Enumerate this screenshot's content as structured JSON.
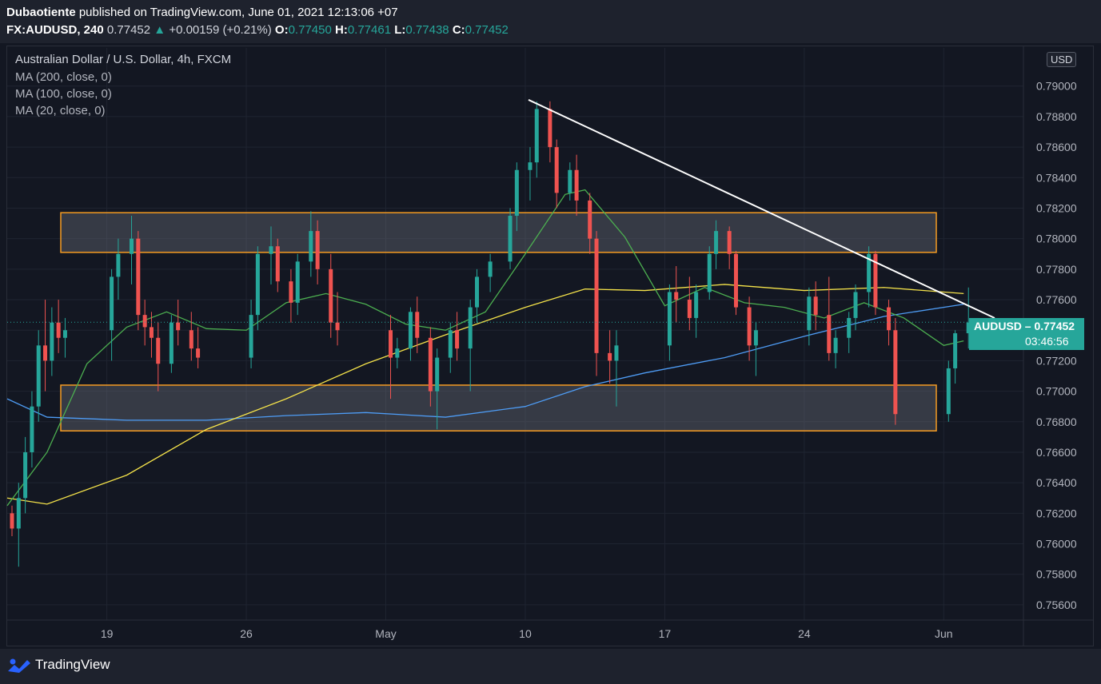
{
  "header": {
    "author": "Dubaotiente",
    "published_text": "published on TradingView.com, June 01, 2021 12:13:06 +07",
    "symbol": "FX:AUDUSD, 240",
    "last": "0.77452",
    "change": "+0.00159 (+0.21%)",
    "o_label": "O:",
    "o_value": "0.77450",
    "h_label": "H:",
    "h_value": "0.77461",
    "l_label": "L:",
    "l_value": "0.77438",
    "c_label": "C:",
    "c_value": "0.77452"
  },
  "legend": {
    "title": "Australian Dollar / U.S. Dollar, 4h, FXCM",
    "ma200": "MA (200, close, 0)",
    "ma100": "MA (100, close, 0)",
    "ma20": "MA (20, close, 0)"
  },
  "price_badge": {
    "symbol": "AUDUSD",
    "price": "0.77452",
    "countdown": "03:46:56"
  },
  "currency_badge": "USD",
  "footer": {
    "brand": "TradingView"
  },
  "colors": {
    "up": "#26a69a",
    "down": "#ef5350",
    "ma200": "#4e9cf5",
    "ma100": "#f5e34a",
    "ma20": "#4caf50",
    "zone_border": "#f59b22",
    "trendline": "#ffffff"
  },
  "chart_data": {
    "type": "candlestick",
    "title": "Australian Dollar / U.S. Dollar, 4h, FXCM",
    "y_axis_labels": [
      "0.79000",
      "0.78800",
      "0.78600",
      "0.78400",
      "0.78200",
      "0.78000",
      "0.77800",
      "0.77600",
      "0.77400",
      "0.77200",
      "0.77000",
      "0.76800",
      "0.76600",
      "0.76400",
      "0.76200",
      "0.76000",
      "0.75800",
      "0.75600"
    ],
    "y_ticks": [
      0.79,
      0.788,
      0.786,
      0.784,
      0.782,
      0.78,
      0.778,
      0.776,
      0.774,
      0.772,
      0.77,
      0.768,
      0.766,
      0.764,
      0.762,
      0.76,
      0.758,
      0.756
    ],
    "ylim": [
      0.755,
      0.7925
    ],
    "x_labels": [
      "19",
      "26",
      "May",
      "10",
      "17",
      "24",
      "Jun"
    ],
    "x_label_dates": [
      "2021-04-19",
      "2021-04-26",
      "2021-05-03",
      "2021-05-10",
      "2021-05-17",
      "2021-05-24",
      "2021-05-31"
    ],
    "date_range": [
      "2021-04-14",
      "2021-06-04"
    ],
    "last_price": 0.77452,
    "zones": [
      {
        "top": 0.7817,
        "bottom": 0.7791,
        "start": "2021-04-15",
        "end": "2021-05-31"
      },
      {
        "top": 0.7704,
        "bottom": 0.7674,
        "start": "2021-04-15",
        "end": "2021-05-31"
      }
    ],
    "trendline": [
      {
        "date": "2021-05-11",
        "price": 0.7891
      },
      {
        "date": "2021-06-02",
        "price": 0.7755
      }
    ],
    "ma200": [
      [
        "2021-04-14",
        0.7695
      ],
      [
        "2021-04-16",
        0.7683
      ],
      [
        "2021-04-20",
        0.7681
      ],
      [
        "2021-04-24",
        0.7681
      ],
      [
        "2021-04-28",
        0.7684
      ],
      [
        "2021-05-02",
        0.7686
      ],
      [
        "2021-05-06",
        0.7683
      ],
      [
        "2021-05-10",
        0.769
      ],
      [
        "2021-05-13",
        0.7703
      ],
      [
        "2021-05-16",
        0.7712
      ],
      [
        "2021-05-20",
        0.7722
      ],
      [
        "2021-05-24",
        0.7736
      ],
      [
        "2021-05-28",
        0.7749
      ],
      [
        "2021-06-01",
        0.7757
      ]
    ],
    "ma100": [
      [
        "2021-04-14",
        0.763
      ],
      [
        "2021-04-16",
        0.7626
      ],
      [
        "2021-04-20",
        0.7645
      ],
      [
        "2021-04-24",
        0.7675
      ],
      [
        "2021-04-28",
        0.7695
      ],
      [
        "2021-05-02",
        0.7718
      ],
      [
        "2021-05-06",
        0.7737
      ],
      [
        "2021-05-10",
        0.7755
      ],
      [
        "2021-05-13",
        0.7767
      ],
      [
        "2021-05-16",
        0.7766
      ],
      [
        "2021-05-20",
        0.777
      ],
      [
        "2021-05-24",
        0.7766
      ],
      [
        "2021-05-28",
        0.7768
      ],
      [
        "2021-06-01",
        0.7764
      ]
    ],
    "ma20": [
      [
        "2021-04-14",
        0.7625
      ],
      [
        "2021-04-16",
        0.766
      ],
      [
        "2021-04-18",
        0.7718
      ],
      [
        "2021-04-20",
        0.7742
      ],
      [
        "2021-04-22",
        0.7752
      ],
      [
        "2021-04-24",
        0.7741
      ],
      [
        "2021-04-26",
        0.774
      ],
      [
        "2021-04-28",
        0.7758
      ],
      [
        "2021-04-30",
        0.7764
      ],
      [
        "2021-05-02",
        0.7757
      ],
      [
        "2021-05-04",
        0.7744
      ],
      [
        "2021-05-06",
        0.774
      ],
      [
        "2021-05-08",
        0.7752
      ],
      [
        "2021-05-10",
        0.779
      ],
      [
        "2021-05-12",
        0.7829
      ],
      [
        "2021-05-13",
        0.7832
      ],
      [
        "2021-05-15",
        0.7801
      ],
      [
        "2021-05-17",
        0.7756
      ],
      [
        "2021-05-19",
        0.7768
      ],
      [
        "2021-05-21",
        0.7758
      ],
      [
        "2021-05-23",
        0.7755
      ],
      [
        "2021-05-25",
        0.7748
      ],
      [
        "2021-05-27",
        0.7758
      ],
      [
        "2021-05-29",
        0.7748
      ],
      [
        "2021-05-31",
        0.773
      ],
      [
        "2021-06-01",
        0.7733
      ]
    ],
    "candles": [
      [
        "2021-04-14T00",
        0.762,
        0.7625,
        0.7605,
        0.761
      ],
      [
        "2021-04-14T08",
        0.761,
        0.764,
        0.7585,
        0.763
      ],
      [
        "2021-04-14T16",
        0.763,
        0.767,
        0.762,
        0.766
      ],
      [
        "2021-04-15T00",
        0.766,
        0.77,
        0.765,
        0.769
      ],
      [
        "2021-04-15T08",
        0.769,
        0.774,
        0.768,
        0.773
      ],
      [
        "2021-04-15T16",
        0.773,
        0.776,
        0.77,
        0.772
      ],
      [
        "2021-04-16T00",
        0.772,
        0.7755,
        0.771,
        0.7745
      ],
      [
        "2021-04-16T08",
        0.7745,
        0.776,
        0.7725,
        0.7735
      ],
      [
        "2021-04-16T16",
        0.7735,
        0.7748,
        0.7722,
        0.774
      ],
      [
        "2021-04-19T00",
        0.774,
        0.778,
        0.772,
        0.7775
      ],
      [
        "2021-04-19T08",
        0.7775,
        0.78,
        0.776,
        0.779
      ],
      [
        "2021-04-20T00",
        0.779,
        0.7815,
        0.777,
        0.78
      ],
      [
        "2021-04-20T08",
        0.78,
        0.7805,
        0.774,
        0.775
      ],
      [
        "2021-04-20T16",
        0.775,
        0.776,
        0.773,
        0.7742
      ],
      [
        "2021-04-21T00",
        0.7742,
        0.7752,
        0.7722,
        0.7735
      ],
      [
        "2021-04-21T08",
        0.7735,
        0.7745,
        0.77,
        0.7718
      ],
      [
        "2021-04-22T00",
        0.7718,
        0.775,
        0.7712,
        0.7745
      ],
      [
        "2021-04-22T08",
        0.7745,
        0.776,
        0.773,
        0.774
      ],
      [
        "2021-04-23T00",
        0.774,
        0.7752,
        0.772,
        0.7728
      ],
      [
        "2021-04-23T08",
        0.7728,
        0.7742,
        0.7715,
        0.7722
      ],
      [
        "2021-04-26T00",
        0.7722,
        0.776,
        0.7715,
        0.775
      ],
      [
        "2021-04-26T08",
        0.775,
        0.7795,
        0.774,
        0.779
      ],
      [
        "2021-04-27T00",
        0.779,
        0.7808,
        0.777,
        0.7795
      ],
      [
        "2021-04-27T08",
        0.7795,
        0.78,
        0.7765,
        0.7772
      ],
      [
        "2021-04-28T00",
        0.7772,
        0.778,
        0.7745,
        0.7758
      ],
      [
        "2021-04-28T08",
        0.7758,
        0.779,
        0.775,
        0.7785
      ],
      [
        "2021-04-29T00",
        0.7785,
        0.7818,
        0.7775,
        0.7805
      ],
      [
        "2021-04-29T08",
        0.7805,
        0.7812,
        0.777,
        0.778
      ],
      [
        "2021-04-30T00",
        0.778,
        0.779,
        0.7735,
        0.7745
      ],
      [
        "2021-04-30T08",
        0.7745,
        0.7765,
        0.773,
        0.774
      ],
      [
        "2021-05-03T00",
        0.774,
        0.775,
        0.7695,
        0.7722
      ],
      [
        "2021-05-03T08",
        0.7722,
        0.7735,
        0.7715,
        0.7728
      ],
      [
        "2021-05-04T00",
        0.7728,
        0.7755,
        0.772,
        0.7752
      ],
      [
        "2021-05-04T08",
        0.7752,
        0.7762,
        0.7725,
        0.7735
      ],
      [
        "2021-05-05T00",
        0.7735,
        0.7742,
        0.769,
        0.77
      ],
      [
        "2021-05-05T08",
        0.77,
        0.7728,
        0.7675,
        0.7722
      ],
      [
        "2021-05-06T00",
        0.7722,
        0.7745,
        0.7712,
        0.774
      ],
      [
        "2021-05-06T08",
        0.774,
        0.7752,
        0.772,
        0.7728
      ],
      [
        "2021-05-07T00",
        0.7728,
        0.776,
        0.77,
        0.7755
      ],
      [
        "2021-05-07T08",
        0.7755,
        0.778,
        0.7745,
        0.7775
      ],
      [
        "2021-05-08T00",
        0.7775,
        0.779,
        0.7765,
        0.7785
      ],
      [
        "2021-05-09T00",
        0.7785,
        0.782,
        0.778,
        0.7815
      ],
      [
        "2021-05-09T08",
        0.7815,
        0.785,
        0.7805,
        0.7845
      ],
      [
        "2021-05-10T00",
        0.7845,
        0.786,
        0.7825,
        0.785
      ],
      [
        "2021-05-10T08",
        0.785,
        0.789,
        0.784,
        0.7885
      ],
      [
        "2021-05-11T00",
        0.7885,
        0.789,
        0.785,
        0.786
      ],
      [
        "2021-05-11T08",
        0.786,
        0.7865,
        0.782,
        0.783
      ],
      [
        "2021-05-12T00",
        0.783,
        0.785,
        0.7825,
        0.7845
      ],
      [
        "2021-05-12T08",
        0.7845,
        0.7855,
        0.7815,
        0.7825
      ],
      [
        "2021-05-13T00",
        0.7825,
        0.783,
        0.779,
        0.78
      ],
      [
        "2021-05-13T08",
        0.78,
        0.7805,
        0.771,
        0.7725
      ],
      [
        "2021-05-14T00",
        0.7725,
        0.774,
        0.7705,
        0.772
      ],
      [
        "2021-05-14T08",
        0.772,
        0.774,
        0.769,
        0.773
      ],
      [
        "2021-05-17T00",
        0.773,
        0.777,
        0.772,
        0.7765
      ],
      [
        "2021-05-17T08",
        0.7765,
        0.7782,
        0.7745,
        0.776
      ],
      [
        "2021-05-18T00",
        0.776,
        0.7775,
        0.774,
        0.7748
      ],
      [
        "2021-05-18T08",
        0.7748,
        0.777,
        0.7735,
        0.7765
      ],
      [
        "2021-05-19T00",
        0.7765,
        0.7795,
        0.776,
        0.779
      ],
      [
        "2021-05-19T08",
        0.779,
        0.7812,
        0.778,
        0.7805
      ],
      [
        "2021-05-20T00",
        0.7805,
        0.7808,
        0.778,
        0.779
      ],
      [
        "2021-05-20T08",
        0.779,
        0.7792,
        0.775,
        0.7755
      ],
      [
        "2021-05-21T00",
        0.7755,
        0.7762,
        0.772,
        0.773
      ],
      [
        "2021-05-21T08",
        0.773,
        0.7745,
        0.771,
        0.774
      ],
      [
        "2021-05-24T00",
        0.774,
        0.7768,
        0.773,
        0.7762
      ],
      [
        "2021-05-24T08",
        0.7762,
        0.7772,
        0.774,
        0.775
      ],
      [
        "2021-05-25T00",
        0.775,
        0.7775,
        0.772,
        0.7725
      ],
      [
        "2021-05-25T08",
        0.7725,
        0.774,
        0.7715,
        0.7735
      ],
      [
        "2021-05-26T00",
        0.7735,
        0.7752,
        0.7725,
        0.7748
      ],
      [
        "2021-05-26T08",
        0.7748,
        0.777,
        0.774,
        0.7765
      ],
      [
        "2021-05-27T00",
        0.7765,
        0.7795,
        0.7755,
        0.779
      ],
      [
        "2021-05-27T08",
        0.779,
        0.7792,
        0.775,
        0.7755
      ],
      [
        "2021-05-28T00",
        0.7755,
        0.776,
        0.773,
        0.774
      ],
      [
        "2021-05-28T08",
        0.774,
        0.7748,
        0.7678,
        0.7685
      ],
      [
        "2021-05-31T00",
        0.7685,
        0.772,
        0.768,
        0.7715
      ],
      [
        "2021-05-31T08",
        0.7715,
        0.774,
        0.7705,
        0.7738
      ],
      [
        "2021-06-01T00",
        0.7738,
        0.7768,
        0.7728,
        0.7745
      ]
    ]
  }
}
